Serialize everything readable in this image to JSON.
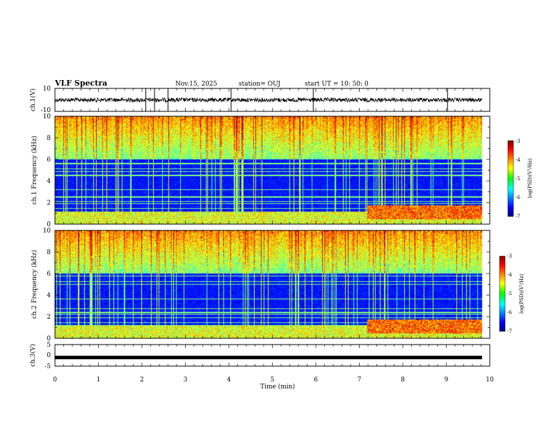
{
  "header": {
    "title": "VLF Spectra",
    "date": "Nov.15, 2025",
    "station": "station= OUJ",
    "start": "start  UT =   10: 50: 0"
  },
  "chart_data": [
    {
      "type": "line",
      "name": "ch1-waveform",
      "ylabel": "ch.1(V)",
      "ylim": [
        -10,
        10
      ],
      "y_ticks": [
        "10",
        "-10"
      ],
      "xlim": [
        0,
        10
      ],
      "trace_mean": 0,
      "trace_noise": 0.6,
      "spikes": [
        2.09,
        2.29,
        2.6,
        4.05,
        5.94,
        9.03
      ]
    },
    {
      "type": "heatmap",
      "name": "ch1-spectrogram",
      "ylabel": "ch.1 Frequency  (kHz)",
      "ylim": [
        0,
        10
      ],
      "y_ticks": [
        "0",
        "2",
        "4",
        "6",
        "8",
        "10"
      ],
      "xlim": [
        0,
        10
      ],
      "data_end_min": 9.82,
      "regime_change_min": 7.17,
      "colorbar": {
        "label": "log(PSD)(V²/Hz)",
        "range": [
          -7,
          -3
        ],
        "ticks": [
          "-7",
          "-6",
          "-5",
          "-4",
          "-3"
        ]
      }
    },
    {
      "type": "heatmap",
      "name": "ch2-spectrogram",
      "ylabel": "ch.2 Frequency  (kHz)",
      "ylim": [
        0,
        10
      ],
      "y_ticks": [
        "0",
        "2",
        "4",
        "6",
        "8",
        "10"
      ],
      "xlim": [
        0,
        10
      ],
      "data_end_min": 9.82,
      "regime_change_min": 7.17,
      "colorbar": {
        "label": "log(PSD)(V²/Hz)",
        "range": [
          -7,
          -3
        ],
        "ticks": [
          "-7",
          "-6",
          "-5",
          "-4",
          "-3"
        ]
      }
    },
    {
      "type": "line",
      "name": "ch3-waveform",
      "ylabel": "ch.3(V)",
      "ylim": [
        -5,
        5
      ],
      "y_ticks": [
        "5",
        "0",
        "-5"
      ],
      "xlim": [
        0,
        10
      ],
      "trace_mean": -1.0
    }
  ],
  "x_axis": {
    "label": "Time  (min)",
    "ticks": [
      "0",
      "1",
      "2",
      "3",
      "4",
      "5",
      "6",
      "7",
      "8",
      "9",
      "10"
    ]
  },
  "colors": {
    "spectrum_low": "#00007f",
    "spectrum_high": "#7f0000",
    "frame": "#000000"
  }
}
